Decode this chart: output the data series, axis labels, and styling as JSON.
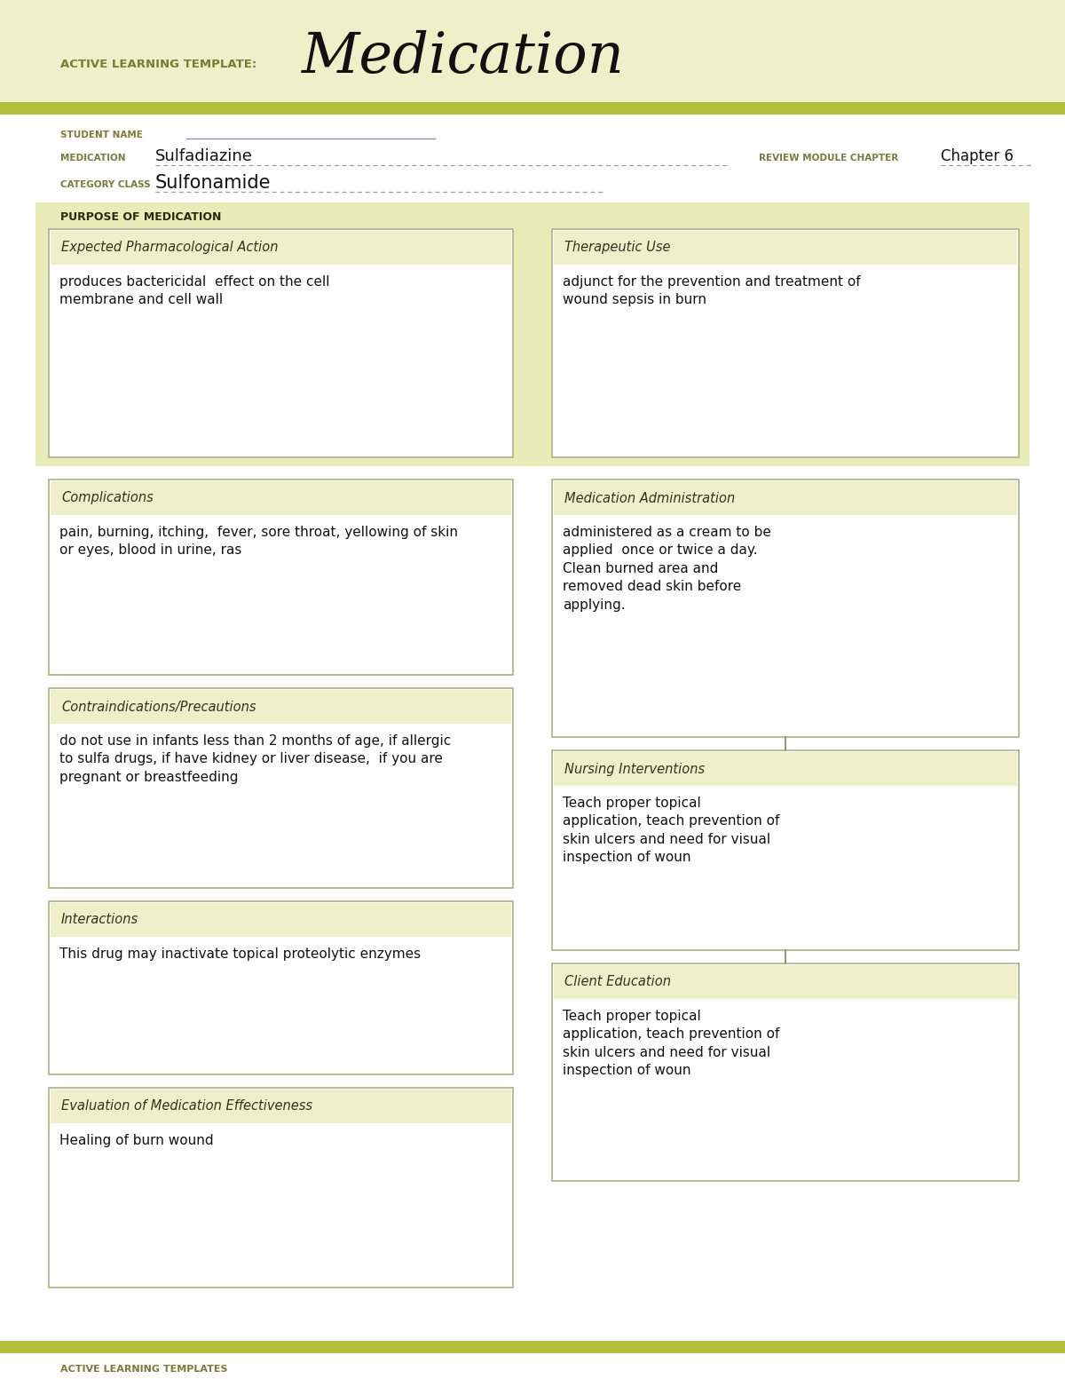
{
  "bg_header_color": "#edf0c8",
  "bg_white": "#ffffff",
  "olive_bar_color": "#b5be3a",
  "section_bg": "#e8ecb8",
  "box_bg": "#edf0c8",
  "box_border": "#b0b890",
  "header_label_color": "#7a7a3a",
  "title_label": "ACTIVE LEARNING TEMPLATE:",
  "title_main": "Medication",
  "student_name_label": "STUDENT NAME",
  "medication_label": "MEDICATION",
  "medication_value": "Sulfadiazine",
  "review_label": "REVIEW MODULE CHAPTER",
  "review_value": "Chapter 6",
  "category_label": "CATEGORY CLASS",
  "category_value": "Sulfonamide",
  "purpose_header": "PURPOSE OF MEDICATION",
  "box1_title": "Expected Pharmacological Action",
  "box1_text": "produces bactericidal  effect on the cell\nmembrane and cell wall",
  "box2_title": "Therapeutic Use",
  "box2_text": "adjunct for the prevention and treatment of\nwound sepsis in burn",
  "box3_title": "Complications",
  "box3_text": "pain, burning, itching,  fever, sore throat, yellowing of skin\nor eyes, blood in urine, ras",
  "box4_title": "Medication Administration",
  "box4_text": "administered as a cream to be\napplied  once or twice a day.\nClean burned area and\nremoved dead skin before\napplying.",
  "box5_title": "Contraindications/Precautions",
  "box5_text": "do not use in infants less than 2 months of age, if allergic\nto sulfa drugs, if have kidney or liver disease,  if you are\npregnant or breastfeeding",
  "box6_title": "Nursing Interventions",
  "box6_text": "Teach proper topical\napplication, teach prevention of\nskin ulcers and need for visual\ninspection of woun",
  "box7_title": "Interactions",
  "box7_text": "This drug may inactivate topical proteolytic enzymes",
  "box8_title": "Client Education",
  "box8_text": "Teach proper topical\napplication, teach prevention of\nskin ulcers and need for visual\ninspection of woun",
  "box9_title": "Evaluation of Medication Effectiveness",
  "box9_text": "Healing of burn wound",
  "footer_text": "ACTIVE LEARNING TEMPLATES"
}
